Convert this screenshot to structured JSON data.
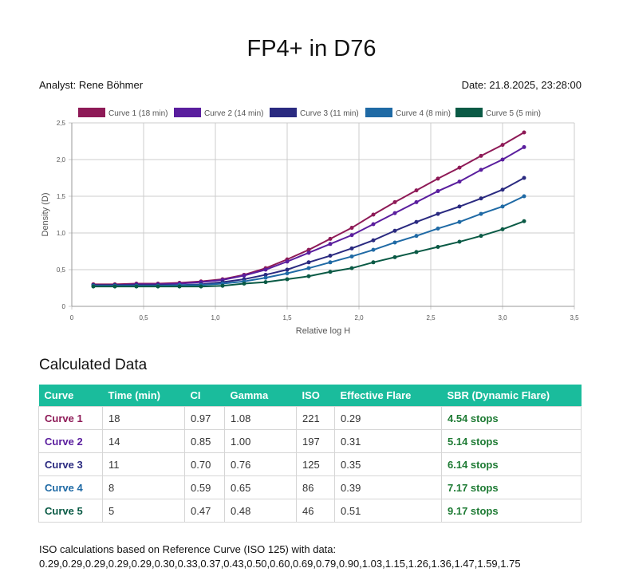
{
  "header": {
    "title": "FP4+ in D76",
    "analyst": "Analyst: Rene Böhmer",
    "date": "Date: 21.8.2025, 23:28:00"
  },
  "chart_data": {
    "type": "line",
    "xlabel": "Relative log H",
    "ylabel": "Density (D)",
    "xlim": [
      0,
      3.5
    ],
    "ylim": [
      0,
      2.5
    ],
    "x_ticks": [
      "0",
      "0,5",
      "1,0",
      "1,5",
      "2,0",
      "2,5",
      "3,0",
      "3,5"
    ],
    "y_ticks": [
      "0",
      "0,5",
      "1,0",
      "1,5",
      "2,0",
      "2,5"
    ],
    "grid": true,
    "legend": "top",
    "x": [
      0.15,
      0.3,
      0.45,
      0.6,
      0.75,
      0.9,
      1.05,
      1.2,
      1.35,
      1.5,
      1.65,
      1.8,
      1.95,
      2.1,
      2.25,
      2.4,
      2.55,
      2.7,
      2.85,
      3.0,
      3.15
    ],
    "series": [
      {
        "name": "Curve 1 (18 min)",
        "color": "#8e1a57",
        "values": [
          0.3,
          0.3,
          0.31,
          0.31,
          0.32,
          0.34,
          0.37,
          0.43,
          0.52,
          0.64,
          0.77,
          0.92,
          1.07,
          1.25,
          1.42,
          1.58,
          1.74,
          1.89,
          2.05,
          2.2,
          2.37
        ]
      },
      {
        "name": "Curve 2 (14 min)",
        "color": "#5a1e9e",
        "values": [
          0.29,
          0.29,
          0.3,
          0.3,
          0.31,
          0.33,
          0.36,
          0.42,
          0.5,
          0.61,
          0.73,
          0.85,
          0.97,
          1.12,
          1.27,
          1.42,
          1.57,
          1.7,
          1.86,
          2.0,
          2.17
        ]
      },
      {
        "name": "Curve 3 (11 min)",
        "color": "#2a2a80",
        "values": [
          0.29,
          0.29,
          0.29,
          0.29,
          0.29,
          0.3,
          0.33,
          0.37,
          0.43,
          0.5,
          0.6,
          0.69,
          0.79,
          0.9,
          1.03,
          1.15,
          1.26,
          1.36,
          1.47,
          1.59,
          1.75
        ]
      },
      {
        "name": "Curve 4 (8 min)",
        "color": "#1f6aa5",
        "values": [
          0.28,
          0.28,
          0.28,
          0.28,
          0.29,
          0.29,
          0.31,
          0.34,
          0.39,
          0.45,
          0.52,
          0.6,
          0.68,
          0.77,
          0.87,
          0.96,
          1.06,
          1.15,
          1.26,
          1.36,
          1.5
        ]
      },
      {
        "name": "Curve 5 (5 min)",
        "color": "#0a5a45",
        "values": [
          0.27,
          0.27,
          0.27,
          0.27,
          0.27,
          0.27,
          0.28,
          0.31,
          0.33,
          0.37,
          0.41,
          0.47,
          0.52,
          0.6,
          0.67,
          0.74,
          0.81,
          0.88,
          0.96,
          1.05,
          1.16
        ]
      }
    ]
  },
  "section": {
    "title": "Calculated Data"
  },
  "table": {
    "headers": [
      "Curve",
      "Time (min)",
      "CI",
      "Gamma",
      "ISO",
      "Effective Flare",
      "SBR (Dynamic Flare)"
    ],
    "rows": [
      {
        "name": "Curve 1",
        "color": "#8e1a57",
        "time": "18",
        "ci": "0.97",
        "gamma": "1.08",
        "iso": "221",
        "flare": "0.29",
        "sbr": "4.54 stops"
      },
      {
        "name": "Curve 2",
        "color": "#5a1e9e",
        "time": "14",
        "ci": "0.85",
        "gamma": "1.00",
        "iso": "197",
        "flare": "0.31",
        "sbr": "5.14 stops"
      },
      {
        "name": "Curve 3",
        "color": "#2a2a80",
        "time": "11",
        "ci": "0.70",
        "gamma": "0.76",
        "iso": "125",
        "flare": "0.35",
        "sbr": "6.14 stops"
      },
      {
        "name": "Curve 4",
        "color": "#1f6aa5",
        "time": "8",
        "ci": "0.59",
        "gamma": "0.65",
        "iso": "86",
        "flare": "0.39",
        "sbr": "7.17 stops"
      },
      {
        "name": "Curve 5",
        "color": "#0a5a45",
        "time": "5",
        "ci": "0.47",
        "gamma": "0.48",
        "iso": "46",
        "flare": "0.51",
        "sbr": "9.17 stops"
      }
    ]
  },
  "footer": {
    "line1": "ISO calculations based on Reference Curve (ISO 125) with data:",
    "line2": "0.29,0.29,0.29,0.29,0.29,0.30,0.33,0.37,0.43,0.50,0.60,0.69,0.79,0.90,1.03,1.15,1.26,1.36,1.47,1.59,1.75"
  },
  "colors": {
    "table_header": "#1abc9c",
    "sbr_text": "#1e7b34"
  }
}
